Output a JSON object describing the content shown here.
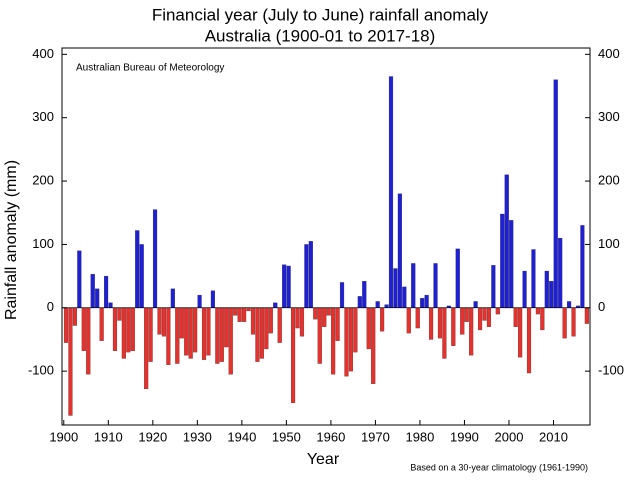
{
  "chart_data": {
    "type": "bar",
    "title": "Financial year (July to June) rainfall anomaly",
    "subtitle": "Australia (1900-01 to 2017-18)",
    "annotation": "Australian Bureau of Meteorology",
    "footnote": "Based on a 30-year climatology (1961-1990)",
    "xlabel": "Year",
    "ylabel": "Rainfall anomaly (mm)",
    "x": [
      1900,
      1901,
      1902,
      1903,
      1904,
      1905,
      1906,
      1907,
      1908,
      1909,
      1910,
      1911,
      1912,
      1913,
      1914,
      1915,
      1916,
      1917,
      1918,
      1919,
      1920,
      1921,
      1922,
      1923,
      1924,
      1925,
      1926,
      1927,
      1928,
      1929,
      1930,
      1931,
      1932,
      1933,
      1934,
      1935,
      1936,
      1937,
      1938,
      1939,
      1940,
      1941,
      1942,
      1943,
      1944,
      1945,
      1946,
      1947,
      1948,
      1949,
      1950,
      1951,
      1952,
      1953,
      1954,
      1955,
      1956,
      1957,
      1958,
      1959,
      1960,
      1961,
      1962,
      1963,
      1964,
      1965,
      1966,
      1967,
      1968,
      1969,
      1970,
      1971,
      1972,
      1973,
      1974,
      1975,
      1976,
      1977,
      1978,
      1979,
      1980,
      1981,
      1982,
      1983,
      1984,
      1985,
      1986,
      1987,
      1988,
      1989,
      1990,
      1991,
      1992,
      1993,
      1994,
      1995,
      1996,
      1997,
      1998,
      1999,
      2000,
      2001,
      2002,
      2003,
      2004,
      2005,
      2006,
      2007,
      2008,
      2009,
      2010,
      2011,
      2012,
      2013,
      2014,
      2015,
      2016,
      2017
    ],
    "values": [
      -55,
      -170,
      -28,
      90,
      -68,
      -105,
      53,
      30,
      -52,
      50,
      8,
      -68,
      -20,
      -80,
      -70,
      -68,
      122,
      100,
      -128,
      -85,
      155,
      -42,
      -45,
      -90,
      30,
      -88,
      -48,
      -75,
      -80,
      -70,
      20,
      -82,
      -75,
      27,
      -88,
      -85,
      -62,
      -105,
      -12,
      -22,
      -22,
      -5,
      -42,
      -85,
      -80,
      -65,
      -40,
      8,
      -55,
      68,
      66,
      -150,
      -32,
      -45,
      100,
      105,
      -18,
      -88,
      -30,
      -12,
      -105,
      -52,
      40,
      -108,
      -100,
      -70,
      18,
      42,
      -65,
      -120,
      10,
      -37,
      5,
      365,
      62,
      180,
      33,
      -40,
      70,
      -32,
      15,
      20,
      -50,
      70,
      -48,
      -80,
      3,
      -60,
      93,
      -42,
      -22,
      -75,
      10,
      -35,
      -20,
      -30,
      67,
      -10,
      148,
      210,
      138,
      -30,
      -78,
      58,
      -103,
      92,
      -10,
      -35,
      58,
      42,
      360,
      110,
      -48,
      10,
      -45,
      3,
      130,
      -25
    ],
    "positive_color": "#1f1fd6",
    "negative_color": "#e8302c",
    "xlim": [
      1899.6,
      2018.2
    ],
    "xticks": [
      1900,
      1910,
      1920,
      1930,
      1940,
      1950,
      1960,
      1970,
      1980,
      1990,
      2000,
      2010
    ],
    "ylim": [
      -185,
      410
    ],
    "yticks": [
      -100,
      0,
      100,
      200,
      300,
      400
    ]
  }
}
